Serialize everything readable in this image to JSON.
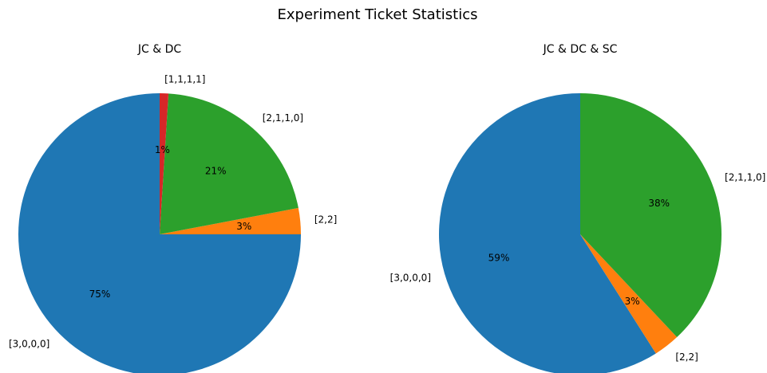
{
  "figure": {
    "title": "Experiment Ticket Statistics"
  },
  "chart_data": [
    {
      "type": "pie",
      "title": "JC & DC",
      "slices": [
        {
          "label": "[2,2]",
          "value": 3,
          "pct_label": "3%",
          "color": "#ff7f0e"
        },
        {
          "label": "[2,1,1,0]",
          "value": 21,
          "pct_label": "21%",
          "color": "#2ca02c"
        },
        {
          "label": "[1,1,1,1]",
          "value": 1,
          "pct_label": "1%",
          "color": "#d62728"
        },
        {
          "label": "[3,0,0,0]",
          "value": 75,
          "pct_label": "75%",
          "color": "#1f77b4"
        }
      ],
      "start_angle_deg": 0,
      "direction": "counterclockwise"
    },
    {
      "type": "pie",
      "title": "JC & DC & SC",
      "slices": [
        {
          "label": "[3,0,0,0]",
          "value": 59,
          "pct_label": "59%",
          "color": "#1f77b4"
        },
        {
          "label": "[2,2]",
          "value": 3,
          "pct_label": "3%",
          "color": "#ff7f0e"
        },
        {
          "label": "[2,1,1,0]",
          "value": 38,
          "pct_label": "38%",
          "color": "#2ca02c"
        }
      ],
      "start_angle_deg": 90,
      "direction": "counterclockwise"
    }
  ]
}
